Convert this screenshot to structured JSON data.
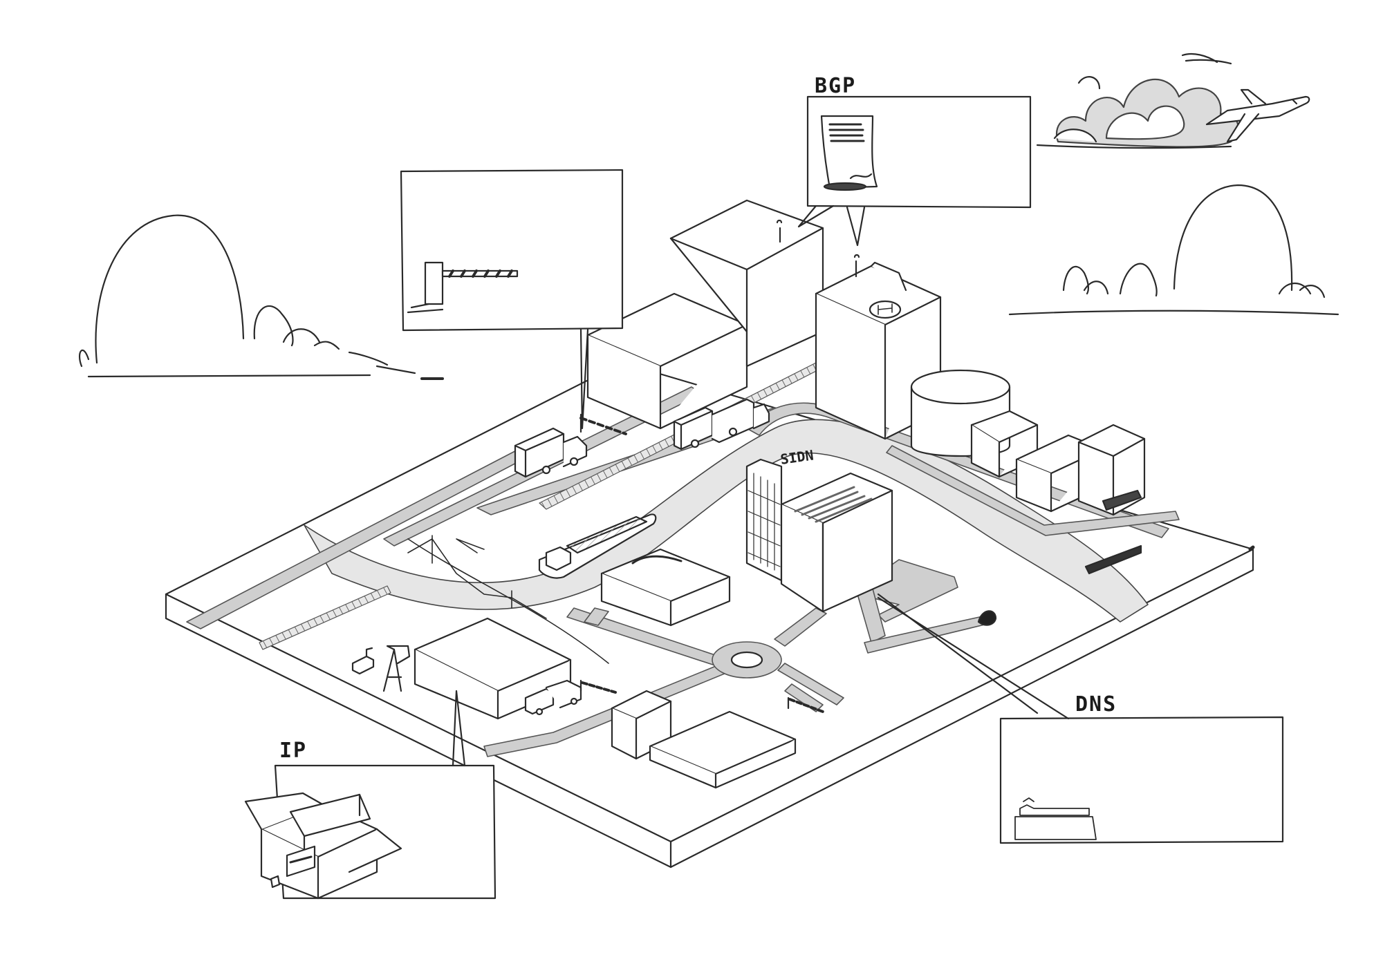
{
  "labels": {
    "bgp": "BGP",
    "sidn": "SIDN",
    "dns": "DNS",
    "ip": "IP"
  },
  "colors": {
    "ink": "#2a2a2a",
    "road": "#cfcfcf",
    "water": "#e4e4e4",
    "bush_fill": "#dcdcdc",
    "paper": "#ffffff"
  },
  "icons": {
    "bgp_box": "signed-document-icon",
    "barrier_box": "boom-barrier-icon",
    "ip_box": "open-package-box-icon",
    "dns_box": "folder-stack-icon",
    "sky": "airplane-icon"
  }
}
